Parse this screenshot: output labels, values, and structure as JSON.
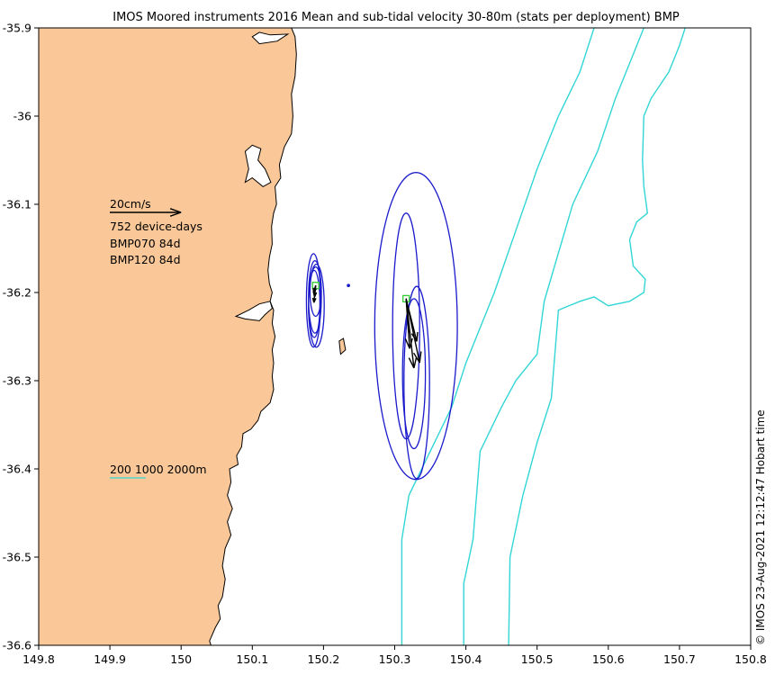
{
  "title": "IMOS Moored instruments 2016 Mean and sub-tidal velocity 30-80m (stats per deployment) BMP",
  "credit": "© IMOS 23-Aug-2021 12:12:47 Hobart time",
  "axes": {
    "x_ticks": [
      "149.8",
      "149.9",
      "150",
      "150.1",
      "150.2",
      "150.3",
      "150.4",
      "150.5",
      "150.6",
      "150.7",
      "150.8"
    ],
    "y_ticks": [
      "-35.9",
      "-36",
      "-36.1",
      "-36.2",
      "-36.3",
      "-36.4",
      "-36.5",
      "-36.6"
    ],
    "xlim": [
      149.8,
      150.8
    ],
    "ylim": [
      -36.6,
      -35.9
    ]
  },
  "legend": {
    "scale_label": "20cm/s",
    "scale_cm_s": 20,
    "device_days": "752 device-days",
    "deployments": [
      "BMP070 84d",
      "BMP120 84d"
    ],
    "isobath_label": "200 1000 2000m"
  },
  "colors": {
    "land": "#fac898",
    "coast": "#000000",
    "isobath": "#33d6d6",
    "ellipse": "#1a1acc",
    "mooring": "#33cc33",
    "arrow": "#000000"
  },
  "moorings": [
    {
      "name": "BMP070",
      "lon": 150.189,
      "lat": -36.192
    },
    {
      "name": "BMP120",
      "lon": 150.316,
      "lat": -36.207
    }
  ],
  "coastline": [
    [
      149.8,
      -35.9
    ],
    [
      150.155,
      -35.9
    ],
    [
      150.16,
      -35.91
    ],
    [
      150.162,
      -35.93
    ],
    [
      150.16,
      -35.955
    ],
    [
      150.155,
      -35.975
    ],
    [
      150.157,
      -36.0
    ],
    [
      150.155,
      -36.02
    ],
    [
      150.145,
      -36.035
    ],
    [
      150.138,
      -36.055
    ],
    [
      150.14,
      -36.07
    ],
    [
      150.132,
      -36.08
    ],
    [
      150.134,
      -36.1
    ],
    [
      150.13,
      -36.11
    ],
    [
      150.127,
      -36.125
    ],
    [
      150.128,
      -36.145
    ],
    [
      150.124,
      -36.16
    ],
    [
      150.122,
      -36.175
    ],
    [
      150.124,
      -36.19
    ],
    [
      150.128,
      -36.2
    ],
    [
      150.125,
      -36.21
    ],
    [
      150.13,
      -36.22
    ],
    [
      150.128,
      -36.235
    ],
    [
      150.132,
      -36.25
    ],
    [
      150.128,
      -36.265
    ],
    [
      150.13,
      -36.28
    ],
    [
      150.128,
      -36.295
    ],
    [
      150.13,
      -36.31
    ],
    [
      150.125,
      -36.325
    ],
    [
      150.112,
      -36.335
    ],
    [
      150.108,
      -36.345
    ],
    [
      150.098,
      -36.355
    ],
    [
      150.087,
      -36.36
    ],
    [
      150.085,
      -36.375
    ],
    [
      150.078,
      -36.385
    ],
    [
      150.08,
      -36.395
    ],
    [
      150.068,
      -36.4
    ],
    [
      150.07,
      -36.415
    ],
    [
      150.065,
      -36.43
    ],
    [
      150.072,
      -36.445
    ],
    [
      150.065,
      -36.46
    ],
    [
      150.07,
      -36.475
    ],
    [
      150.062,
      -36.49
    ],
    [
      150.058,
      -36.51
    ],
    [
      150.062,
      -36.525
    ],
    [
      150.058,
      -36.545
    ],
    [
      150.052,
      -36.555
    ],
    [
      150.055,
      -36.57
    ],
    [
      150.048,
      -36.58
    ],
    [
      150.04,
      -36.595
    ],
    [
      150.042,
      -36.6
    ],
    [
      149.8,
      -36.6
    ]
  ],
  "isobaths": [
    {
      "depth": "200m",
      "points": [
        [
          150.31,
          -36.6
        ],
        [
          150.31,
          -36.48
        ],
        [
          150.32,
          -36.43
        ],
        [
          150.35,
          -36.38
        ],
        [
          150.38,
          -36.33
        ],
        [
          150.4,
          -36.28
        ],
        [
          150.42,
          -36.24
        ],
        [
          150.44,
          -36.2
        ],
        [
          150.47,
          -36.13
        ],
        [
          150.5,
          -36.06
        ],
        [
          150.53,
          -36.0
        ],
        [
          150.56,
          -35.95
        ],
        [
          150.58,
          -35.9
        ]
      ]
    },
    {
      "depth": "1000m",
      "points": [
        [
          150.397,
          -36.6
        ],
        [
          150.397,
          -36.53
        ],
        [
          150.41,
          -36.48
        ],
        [
          150.42,
          -36.38
        ],
        [
          150.45,
          -36.33
        ],
        [
          150.47,
          -36.3
        ],
        [
          150.5,
          -36.27
        ],
        [
          150.51,
          -36.21
        ],
        [
          150.55,
          -36.1
        ],
        [
          150.585,
          -36.04
        ],
        [
          150.61,
          -35.98
        ],
        [
          150.635,
          -35.93
        ],
        [
          150.65,
          -35.9
        ]
      ]
    },
    {
      "depth": "2000m",
      "points": [
        [
          150.46,
          -36.6
        ],
        [
          150.462,
          -36.5
        ],
        [
          150.48,
          -36.43
        ],
        [
          150.5,
          -36.37
        ],
        [
          150.52,
          -36.32
        ],
        [
          150.53,
          -36.22
        ],
        [
          150.56,
          -36.21
        ],
        [
          150.58,
          -36.205
        ],
        [
          150.6,
          -36.215
        ],
        [
          150.63,
          -36.21
        ],
        [
          150.65,
          -36.2
        ],
        [
          150.652,
          -36.185
        ],
        [
          150.635,
          -36.17
        ],
        [
          150.63,
          -36.14
        ],
        [
          150.64,
          -36.12
        ],
        [
          150.655,
          -36.11
        ],
        [
          150.65,
          -36.08
        ],
        [
          150.648,
          -36.05
        ],
        [
          150.65,
          -36.0
        ],
        [
          150.66,
          -35.98
        ],
        [
          150.685,
          -35.95
        ],
        [
          150.7,
          -35.92
        ],
        [
          150.708,
          -35.9
        ]
      ]
    }
  ],
  "lakes": [
    [
      [
        150.1,
        -35.91
      ],
      [
        150.11,
        -35.905
      ],
      [
        150.125,
        -35.908
      ],
      [
        150.15,
        -35.907
      ],
      [
        150.135,
        -35.915
      ],
      [
        150.11,
        -35.918
      ]
    ],
    [
      [
        150.09,
        -36.04
      ],
      [
        150.1,
        -36.033
      ],
      [
        150.112,
        -36.037
      ],
      [
        150.108,
        -36.05
      ],
      [
        150.118,
        -36.06
      ],
      [
        150.126,
        -36.075
      ],
      [
        150.115,
        -36.08
      ],
      [
        150.1,
        -36.07
      ],
      [
        150.09,
        -36.075
      ],
      [
        150.095,
        -36.06
      ]
    ],
    [
      [
        150.077,
        -36.227
      ],
      [
        150.095,
        -36.22
      ],
      [
        150.11,
        -36.213
      ],
      [
        150.125,
        -36.21
      ],
      [
        150.128,
        -36.218
      ],
      [
        150.118,
        -36.225
      ],
      [
        150.11,
        -36.232
      ],
      [
        150.09,
        -36.23
      ]
    ]
  ],
  "island": [
    [
      150.222,
      -36.255
    ],
    [
      150.228,
      -36.252
    ],
    [
      150.231,
      -36.265
    ],
    [
      150.224,
      -36.27
    ]
  ],
  "ellipses": [
    {
      "cx": 150.186,
      "cy": -36.209,
      "rx": 0.01,
      "ry": 0.053
    },
    {
      "cx": 150.19,
      "cy": -36.215,
      "rx": 0.011,
      "ry": 0.047
    },
    {
      "cx": 150.188,
      "cy": -36.205,
      "rx": 0.009,
      "ry": 0.041
    },
    {
      "cx": 150.187,
      "cy": -36.213,
      "rx": 0.008,
      "ry": 0.038
    },
    {
      "cx": 150.189,
      "cy": -36.199,
      "rx": 0.008,
      "ry": 0.028
    },
    {
      "cx": 150.235,
      "cy": -36.192,
      "rx": 0.0012,
      "ry": 0.0012
    },
    {
      "cx": 150.33,
      "cy": -36.238,
      "rx": 0.058,
      "ry": 0.174
    },
    {
      "cx": 150.316,
      "cy": -36.238,
      "rx": 0.019,
      "ry": 0.128
    },
    {
      "cx": 150.331,
      "cy": -36.302,
      "rx": 0.018,
      "ry": 0.109
    },
    {
      "cx": 150.327,
      "cy": -36.292,
      "rx": 0.016,
      "ry": 0.085
    }
  ],
  "arrows": [
    {
      "lon": 150.189,
      "lat": -36.192,
      "u_cm_s": -0.5,
      "v_cm_s": -4.8
    },
    {
      "lon": 150.189,
      "lat": -36.192,
      "u_cm_s": -0.3,
      "v_cm_s": -3.2
    },
    {
      "lon": 150.189,
      "lat": -36.192,
      "u_cm_s": -0.6,
      "v_cm_s": -2.0
    },
    {
      "lon": 150.316,
      "lat": -36.207,
      "u_cm_s": 2.2,
      "v_cm_s": -19.5
    },
    {
      "lon": 150.316,
      "lat": -36.207,
      "u_cm_s": 3.8,
      "v_cm_s": -18.0
    },
    {
      "lon": 150.316,
      "lat": -36.207,
      "u_cm_s": 1.0,
      "v_cm_s": -14.0
    },
    {
      "lon": 150.316,
      "lat": -36.207,
      "u_cm_s": 3.0,
      "v_cm_s": -12.0
    }
  ]
}
